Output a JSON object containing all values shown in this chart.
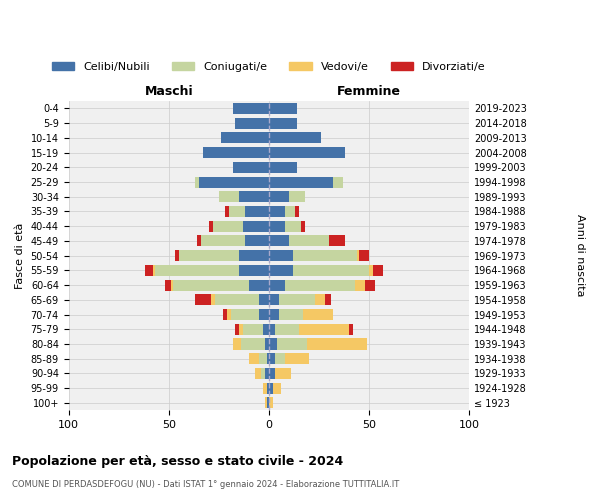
{
  "age_groups": [
    "100+",
    "95-99",
    "90-94",
    "85-89",
    "80-84",
    "75-79",
    "70-74",
    "65-69",
    "60-64",
    "55-59",
    "50-54",
    "45-49",
    "40-44",
    "35-39",
    "30-34",
    "25-29",
    "20-24",
    "15-19",
    "10-14",
    "5-9",
    "0-4"
  ],
  "birth_years": [
    "≤ 1923",
    "1924-1928",
    "1929-1933",
    "1934-1938",
    "1939-1943",
    "1944-1948",
    "1949-1953",
    "1954-1958",
    "1959-1963",
    "1964-1968",
    "1969-1973",
    "1974-1978",
    "1979-1983",
    "1984-1988",
    "1989-1993",
    "1994-1998",
    "1999-2003",
    "2004-2008",
    "2009-2013",
    "2014-2018",
    "2019-2023"
  ],
  "colors": {
    "celibi": "#4472a8",
    "coniugati": "#c5d5a0",
    "vedovi": "#f5c864",
    "divorziati": "#cc2222"
  },
  "males": {
    "celibi": [
      1,
      1,
      2,
      1,
      2,
      3,
      5,
      5,
      10,
      15,
      15,
      12,
      13,
      12,
      15,
      35,
      18,
      33,
      24,
      17,
      18
    ],
    "coniugati": [
      0,
      0,
      2,
      4,
      12,
      10,
      14,
      22,
      38,
      42,
      30,
      22,
      15,
      8,
      10,
      2,
      0,
      0,
      0,
      0,
      0
    ],
    "vedovi": [
      1,
      2,
      3,
      5,
      4,
      2,
      2,
      2,
      1,
      1,
      0,
      0,
      0,
      0,
      0,
      0,
      0,
      0,
      0,
      0,
      0
    ],
    "divorziati": [
      0,
      0,
      0,
      0,
      0,
      2,
      2,
      8,
      3,
      4,
      2,
      2,
      2,
      2,
      0,
      0,
      0,
      0,
      0,
      0,
      0
    ]
  },
  "females": {
    "celibi": [
      0,
      2,
      3,
      3,
      4,
      3,
      5,
      5,
      8,
      12,
      12,
      10,
      8,
      8,
      10,
      32,
      14,
      38,
      26,
      14,
      14
    ],
    "coniugati": [
      0,
      0,
      0,
      5,
      15,
      12,
      12,
      18,
      35,
      38,
      32,
      20,
      8,
      5,
      8,
      5,
      0,
      0,
      0,
      0,
      0
    ],
    "vedovi": [
      2,
      4,
      8,
      12,
      30,
      25,
      15,
      5,
      5,
      2,
      1,
      0,
      0,
      0,
      0,
      0,
      0,
      0,
      0,
      0,
      0
    ],
    "divorziati": [
      0,
      0,
      0,
      0,
      0,
      2,
      0,
      3,
      5,
      5,
      5,
      8,
      2,
      2,
      0,
      0,
      0,
      0,
      0,
      0,
      0
    ]
  },
  "title": "Popolazione per età, sesso e stato civile - 2024",
  "subtitle": "COMUNE DI PERDASDEFOGU (NU) - Dati ISTAT 1° gennaio 2024 - Elaborazione TUTTITALIA.IT",
  "xlabel_left": "Maschi",
  "xlabel_right": "Femmine",
  "ylabel_left": "Fasce di età",
  "ylabel_right": "Anni di nascita",
  "xlim": 100,
  "legend_labels": [
    "Celibi/Nubili",
    "Coniugati/e",
    "Vedovi/e",
    "Divorziati/e"
  ],
  "background_color": "#ffffff",
  "grid_color": "#cccccc"
}
